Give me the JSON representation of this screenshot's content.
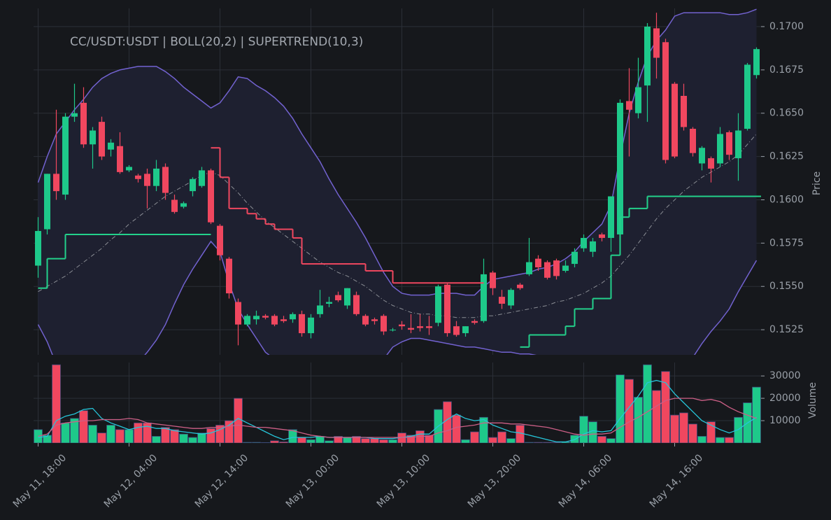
{
  "chart_data": [
    {
      "type": "candlestick",
      "title": "CC/USDT:USDT | BOLL(20,2) | SUPERTREND(10,3)",
      "ylabel": "Price",
      "categories": [
        "May 11, 18:00",
        null,
        null,
        null,
        null,
        null,
        null,
        null,
        null,
        null,
        "May 12, 04:00",
        null,
        null,
        null,
        null,
        null,
        null,
        null,
        null,
        null,
        "May 12, 14:00",
        null,
        null,
        null,
        null,
        null,
        null,
        null,
        null,
        null,
        "May 13, 00:00",
        null,
        null,
        null,
        null,
        null,
        null,
        null,
        null,
        null,
        "May 13, 10:00",
        null,
        null,
        null,
        null,
        null,
        null,
        null,
        null,
        null,
        "May 13, 20:00",
        null,
        null,
        null,
        null,
        null,
        null,
        null,
        null,
        null,
        "May 14, 06:00",
        null,
        null,
        null,
        null,
        null,
        null,
        null,
        null,
        null,
        "May 14, 16:00",
        null,
        null,
        null,
        null,
        null,
        null,
        null,
        null,
        null
      ],
      "open": [
        0.1562,
        0.1583,
        0.1615,
        0.1603,
        0.1648,
        0.1656,
        0.1632,
        0.1645,
        0.1629,
        0.1631,
        0.1617,
        0.1614,
        0.1615,
        0.1608,
        0.1619,
        0.16,
        0.1596,
        0.1605,
        0.1608,
        0.1617,
        0.1585,
        0.1566,
        0.1541,
        0.1528,
        0.1531,
        0.1533,
        0.1533,
        0.1531,
        0.1531,
        0.1534,
        0.1523,
        0.1534,
        0.154,
        0.1545,
        0.1539,
        0.1545,
        0.1533,
        0.1531,
        0.1533,
        0.1525,
        0.1528,
        0.1526,
        0.1527,
        0.1527,
        0.1529,
        0.1551,
        0.1527,
        0.1523,
        0.153,
        0.153,
        0.1558,
        0.1544,
        0.1539,
        0.1551,
        0.1557,
        0.1566,
        0.1564,
        0.1565,
        0.1559,
        0.1563,
        0.1572,
        0.157,
        0.158,
        0.1578,
        0.158,
        0.1657,
        0.165,
        0.1666,
        0.1699,
        0.1691,
        0.1667,
        0.166,
        0.1641,
        0.1621,
        0.1624,
        0.1621,
        0.1639,
        0.1624,
        0.1641,
        0.1672
      ],
      "high": [
        0.159,
        0.1615,
        0.1652,
        0.165,
        0.1667,
        0.1665,
        0.1642,
        0.1648,
        0.1635,
        0.1639,
        0.162,
        0.1615,
        0.1618,
        0.1623,
        0.1621,
        0.1603,
        0.1599,
        0.1613,
        0.1619,
        0.1618,
        0.1586,
        0.1567,
        0.1543,
        0.1534,
        0.1536,
        0.1534,
        0.1534,
        0.1533,
        0.1535,
        0.1536,
        0.1534,
        0.1548,
        0.1544,
        0.1547,
        0.1549,
        0.1547,
        0.1534,
        0.1532,
        0.1534,
        0.1526,
        0.153,
        0.1534,
        0.1534,
        0.1533,
        0.1551,
        0.1552,
        0.153,
        0.1527,
        0.1531,
        0.1566,
        0.1559,
        0.1548,
        0.1549,
        0.1552,
        0.1578,
        0.1568,
        0.1565,
        0.1566,
        0.1565,
        0.1572,
        0.158,
        0.1578,
        0.1581,
        0.1602,
        0.1658,
        0.1676,
        0.1682,
        0.1702,
        0.1708,
        0.1693,
        0.1668,
        0.1667,
        0.1642,
        0.1631,
        0.1625,
        0.1642,
        0.164,
        0.165,
        0.1679,
        0.1688
      ],
      "low": [
        0.1555,
        0.158,
        0.16,
        0.16,
        0.1645,
        0.163,
        0.1618,
        0.1623,
        0.1625,
        0.1615,
        0.1616,
        0.161,
        0.1595,
        0.1605,
        0.16,
        0.1592,
        0.1595,
        0.1602,
        0.1607,
        0.1586,
        0.1565,
        0.1543,
        0.1516,
        0.1527,
        0.1528,
        0.1531,
        0.1527,
        0.1529,
        0.1529,
        0.1521,
        0.152,
        0.1532,
        0.1538,
        0.1541,
        0.1537,
        0.1533,
        0.1527,
        0.1528,
        0.1522,
        0.1524,
        0.1525,
        0.1523,
        0.1524,
        0.1522,
        0.1527,
        0.1521,
        0.1521,
        0.1521,
        0.1528,
        0.1529,
        0.1545,
        0.1537,
        0.1537,
        0.1548,
        0.1556,
        0.1559,
        0.1554,
        0.1554,
        0.1558,
        0.1561,
        0.157,
        0.1567,
        0.1576,
        0.157,
        0.1578,
        0.1625,
        0.1647,
        0.1645,
        0.167,
        0.1621,
        0.1624,
        0.164,
        0.1625,
        0.1617,
        0.161,
        0.1619,
        0.1623,
        0.1611,
        0.164,
        0.167
      ],
      "close": [
        0.1582,
        0.1615,
        0.1605,
        0.1648,
        0.165,
        0.1632,
        0.164,
        0.1625,
        0.1633,
        0.1616,
        0.1619,
        0.1612,
        0.1608,
        0.1618,
        0.1604,
        0.1593,
        0.1598,
        0.1612,
        0.1617,
        0.1587,
        0.1568,
        0.1546,
        0.1528,
        0.1533,
        0.1533,
        0.1532,
        0.1528,
        0.153,
        0.1534,
        0.1523,
        0.1532,
        0.1539,
        0.1541,
        0.1542,
        0.1549,
        0.1534,
        0.1528,
        0.153,
        0.1524,
        0.1525,
        0.1527,
        0.1525,
        0.1526,
        0.1526,
        0.155,
        0.1523,
        0.1522,
        0.1527,
        0.1529,
        0.1557,
        0.1549,
        0.154,
        0.1548,
        0.1549,
        0.1564,
        0.1561,
        0.1555,
        0.1556,
        0.1562,
        0.157,
        0.1578,
        0.1576,
        0.1578,
        0.1602,
        0.1656,
        0.1652,
        0.1665,
        0.17,
        0.1682,
        0.1623,
        0.1625,
        0.1642,
        0.1627,
        0.163,
        0.1618,
        0.1638,
        0.1626,
        0.164,
        0.1678,
        0.1687
      ],
      "up_color": "#1ec98a",
      "down_color": "#f0475f",
      "bollinger": {
        "color": "#7262d0",
        "middle_color": "#8a8d94",
        "fill": "#1e2030",
        "upper": [
          0.161,
          0.1625,
          0.1638,
          0.1645,
          0.1652,
          0.1658,
          0.1665,
          0.167,
          0.1673,
          0.1675,
          0.1676,
          0.1677,
          0.1677,
          0.1677,
          0.1674,
          0.167,
          0.1665,
          0.1661,
          0.1657,
          0.1653,
          0.1656,
          0.1663,
          0.1671,
          0.167,
          0.1666,
          0.1663,
          0.1659,
          0.1654,
          0.1647,
          0.1638,
          0.163,
          0.1622,
          0.1612,
          0.1603,
          0.1595,
          0.1587,
          0.1578,
          0.1568,
          0.1558,
          0.155,
          0.1546,
          0.1545,
          0.1545,
          0.1545,
          0.1546,
          0.1546,
          0.1546,
          0.1545,
          0.1545,
          0.155,
          0.1554,
          0.1555,
          0.1556,
          0.1557,
          0.1558,
          0.156,
          0.1561,
          0.1563,
          0.1566,
          0.157,
          0.1576,
          0.1581,
          0.1586,
          0.1597,
          0.1625,
          0.165,
          0.1668,
          0.1683,
          0.1692,
          0.1698,
          0.1706,
          0.1708,
          0.1708,
          0.1708,
          0.1708,
          0.1708,
          0.1707,
          0.1707,
          0.1708,
          0.171
        ],
        "middle": [
          0.1547,
          0.155,
          0.1553,
          0.1556,
          0.156,
          0.1564,
          0.1568,
          0.1572,
          0.1577,
          0.1581,
          0.1586,
          0.159,
          0.1594,
          0.1598,
          0.1602,
          0.1605,
          0.1608,
          0.1611,
          0.1614,
          0.1616,
          0.1614,
          0.1609,
          0.1604,
          0.1598,
          0.1593,
          0.1588,
          0.1584,
          0.158,
          0.1576,
          0.1572,
          0.1568,
          0.1564,
          0.1561,
          0.1558,
          0.1556,
          0.1553,
          0.155,
          0.1546,
          0.1542,
          0.1539,
          0.1537,
          0.1535,
          0.1534,
          0.1534,
          0.1533,
          0.1533,
          0.1532,
          0.1532,
          0.1532,
          0.1533,
          0.1533,
          0.1534,
          0.1535,
          0.1536,
          0.1537,
          0.1538,
          0.1539,
          0.1541,
          0.1542,
          0.1544,
          0.1546,
          0.1549,
          0.1552,
          0.1556,
          0.1562,
          0.1568,
          0.1575,
          0.1582,
          0.1589,
          0.1595,
          0.16,
          0.1605,
          0.1609,
          0.1613,
          0.1616,
          0.1619,
          0.1622,
          0.1626,
          0.1632,
          0.1638
        ],
        "lower": [
          0.1528,
          0.1518,
          0.1505,
          0.1495,
          0.1488,
          0.1482,
          0.1478,
          0.1478,
          0.1482,
          0.149,
          0.1498,
          0.1506,
          0.1512,
          0.1519,
          0.1528,
          0.154,
          0.1551,
          0.156,
          0.1568,
          0.1576,
          0.157,
          0.1552,
          0.1537,
          0.1528,
          0.152,
          0.1512,
          0.1508,
          0.1505,
          0.1504,
          0.1504,
          0.1505,
          0.1504,
          0.1506,
          0.1508,
          0.1509,
          0.1508,
          0.1507,
          0.1506,
          0.1508,
          0.1515,
          0.1518,
          0.152,
          0.152,
          0.1519,
          0.1518,
          0.1517,
          0.1516,
          0.1515,
          0.1515,
          0.1514,
          0.1513,
          0.1512,
          0.1512,
          0.1511,
          0.1511,
          0.151,
          0.151,
          0.1509,
          0.1508,
          0.1508,
          0.1508,
          0.1508,
          0.1508,
          0.1505,
          0.1498,
          0.1486,
          0.1478,
          0.1475,
          0.1475,
          0.148,
          0.149,
          0.15,
          0.1509,
          0.1517,
          0.1524,
          0.153,
          0.1537,
          0.1547,
          0.1556,
          0.1565
        ]
      },
      "supertrend": {
        "up_color": "#23d18b",
        "down_color": "#f0475f",
        "up": [
          0.1549,
          0.1566,
          0.1566,
          0.158,
          0.158,
          0.158,
          0.158,
          0.158,
          0.158,
          0.158,
          0.158,
          0.158,
          0.158,
          0.158,
          0.158,
          0.158,
          0.158,
          0.158,
          0.158,
          null,
          null,
          null,
          null,
          null,
          null,
          null,
          null,
          null,
          null,
          null,
          null,
          null,
          null,
          null,
          null,
          null,
          null,
          null,
          null,
          null,
          null,
          null,
          null,
          null,
          null,
          null,
          null,
          null,
          null,
          null,
          null,
          null,
          null,
          0.1515,
          0.1522,
          0.1522,
          0.1522,
          0.1522,
          0.1527,
          0.1537,
          0.1537,
          0.1543,
          0.1543,
          0.1568,
          0.159,
          0.1595,
          0.1595,
          0.1602,
          0.1602,
          0.1602,
          0.1602,
          0.1602,
          0.1602,
          0.1602,
          0.1602,
          0.1602,
          0.1602,
          0.1602,
          0.1602,
          0.1602
        ],
        "down": [
          null,
          null,
          null,
          null,
          null,
          null,
          null,
          null,
          null,
          null,
          null,
          null,
          null,
          null,
          null,
          null,
          null,
          null,
          null,
          0.163,
          0.1613,
          0.1595,
          0.1595,
          0.1592,
          0.1589,
          0.1586,
          0.1583,
          0.1583,
          0.1578,
          0.1563,
          0.1563,
          0.1563,
          0.1563,
          0.1563,
          0.1563,
          0.1563,
          0.1559,
          0.1559,
          0.1559,
          0.1552,
          0.1552,
          0.1552,
          0.1552,
          0.1552,
          0.1552,
          0.1552,
          0.1552,
          0.1552,
          0.1552,
          null,
          null,
          null,
          null,
          null,
          null,
          null,
          null,
          null,
          null,
          null,
          null,
          null,
          null,
          null,
          null,
          null,
          null,
          null,
          null,
          null,
          null,
          null,
          null,
          null,
          null,
          null,
          null,
          null,
          null,
          null
        ]
      },
      "ylim": [
        0.15105,
        0.17105
      ],
      "yticks": [
        {
          "value": 0.1525,
          "label": "0.1525"
        },
        {
          "value": 0.155,
          "label": "0.1550"
        },
        {
          "value": 0.1575,
          "label": "0.1575"
        },
        {
          "value": 0.16,
          "label": "0.1600"
        },
        {
          "value": 0.1625,
          "label": "0.1625"
        },
        {
          "value": 0.165,
          "label": "0.1650"
        },
        {
          "value": 0.1675,
          "label": "0.1675"
        },
        {
          "value": 0.17,
          "label": "0.1700"
        }
      ],
      "grid": true
    },
    {
      "type": "bar",
      "ylabel": "Volume",
      "values": [
        6000,
        3500,
        35000,
        9000,
        11000,
        14500,
        8000,
        4500,
        8000,
        6000,
        6000,
        9000,
        9000,
        3000,
        7000,
        6000,
        4000,
        2500,
        4500,
        6500,
        8000,
        10000,
        20000,
        300,
        300,
        200,
        1000,
        500,
        6000,
        2500,
        1500,
        3000,
        1000,
        3000,
        2500,
        3000,
        2000,
        2000,
        1500,
        1500,
        4500,
        3500,
        5500,
        3500,
        15000,
        18500,
        12500,
        1500,
        5000,
        11500,
        2500,
        5000,
        2000,
        8000,
        300,
        300,
        300,
        300,
        500,
        3500,
        12000,
        9500,
        3000,
        2000,
        30500,
        28500,
        20500,
        35000,
        23500,
        32000,
        12500,
        13500,
        8500,
        3000,
        9500,
        2500,
        2500,
        11500,
        18000,
        25000
      ],
      "lines": [
        {
          "color": "#26c6da",
          "values": [
            2500,
            3000,
            10000,
            12000,
            13000,
            15000,
            15500,
            11000,
            9000,
            7500,
            6000,
            7000,
            7500,
            6500,
            6500,
            5500,
            5000,
            4500,
            4000,
            4500,
            6000,
            8000,
            11000,
            9000,
            7000,
            5000,
            3000,
            1500,
            2500,
            2500,
            2500,
            3000,
            2500,
            2500,
            2500,
            2500,
            2500,
            2000,
            2000,
            2000,
            2500,
            3000,
            4000,
            4000,
            7500,
            10500,
            13000,
            11000,
            10000,
            10500,
            8000,
            6500,
            5000,
            4500,
            3500,
            2500,
            1500,
            500,
            500,
            1500,
            4000,
            5500,
            5000,
            5500,
            11000,
            16000,
            21000,
            27000,
            28000,
            27000,
            22000,
            18000,
            14000,
            10000,
            8000,
            6000,
            4500,
            6000,
            9000,
            11500
          ]
        },
        {
          "color": "#cc5f86",
          "values": [
            3000,
            4000,
            8000,
            9000,
            9500,
            10000,
            10000,
            10500,
            10500,
            10500,
            11000,
            10500,
            9000,
            8500,
            8000,
            7500,
            7000,
            6500,
            6500,
            7000,
            7000,
            7500,
            8000,
            7500,
            7000,
            7000,
            6500,
            6000,
            5500,
            4500,
            3500,
            3000,
            2500,
            2500,
            2500,
            2500,
            2500,
            2500,
            2500,
            2500,
            2500,
            2500,
            3000,
            3000,
            4500,
            5500,
            7000,
            7500,
            8000,
            9000,
            9000,
            9000,
            8500,
            8500,
            8000,
            7500,
            7000,
            6000,
            5000,
            4000,
            3500,
            4000,
            4000,
            4500,
            7000,
            9500,
            11500,
            14000,
            16500,
            19000,
            20000,
            20000,
            20000,
            19000,
            19500,
            18500,
            16000,
            14000,
            12500,
            11000
          ]
        }
      ],
      "ylim": [
        0,
        36000
      ],
      "yticks": [
        10000,
        20000,
        30000
      ],
      "grid": true
    }
  ]
}
